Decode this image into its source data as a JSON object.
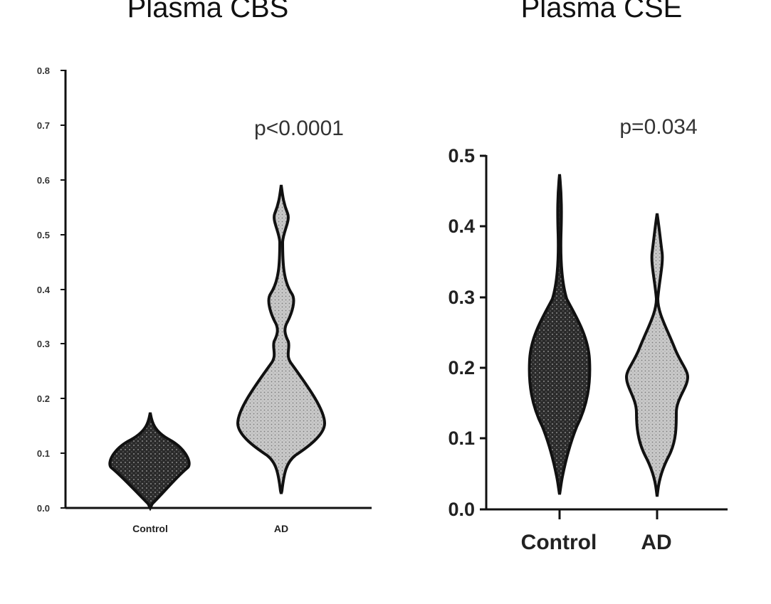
{
  "chart_data": [
    {
      "type": "violin",
      "title": "Plasma CBS",
      "annotation": "p<0.0001",
      "categories": [
        "Control",
        "AD"
      ],
      "yticks": [
        "0.0",
        "0.1",
        "0.2",
        "0.3",
        "0.4",
        "0.5",
        "0.6",
        "0.7",
        "0.8"
      ],
      "ylim": [
        0,
        0.8
      ],
      "series": [
        {
          "category": "Control",
          "min": 0.0,
          "max": 0.17,
          "median": 0.08,
          "fill": "#2e2e2e"
        },
        {
          "category": "AD",
          "min": 0.03,
          "max": 0.59,
          "median": 0.17,
          "fill": "#bdbdbd"
        }
      ]
    },
    {
      "type": "violin",
      "title": "Plasma CSE",
      "annotation": "p=0.034",
      "categories": [
        "Control",
        "AD"
      ],
      "yticks": [
        "0.0",
        "0.1",
        "0.2",
        "0.3",
        "0.4",
        "0.5"
      ],
      "ylim": [
        0,
        0.5
      ],
      "series": [
        {
          "category": "Control",
          "min": 0.02,
          "max": 0.47,
          "median": 0.18,
          "fill": "#2e2e2e"
        },
        {
          "category": "AD",
          "min": 0.01,
          "max": 0.41,
          "median": 0.15,
          "fill": "#bdbdbd"
        }
      ]
    }
  ]
}
